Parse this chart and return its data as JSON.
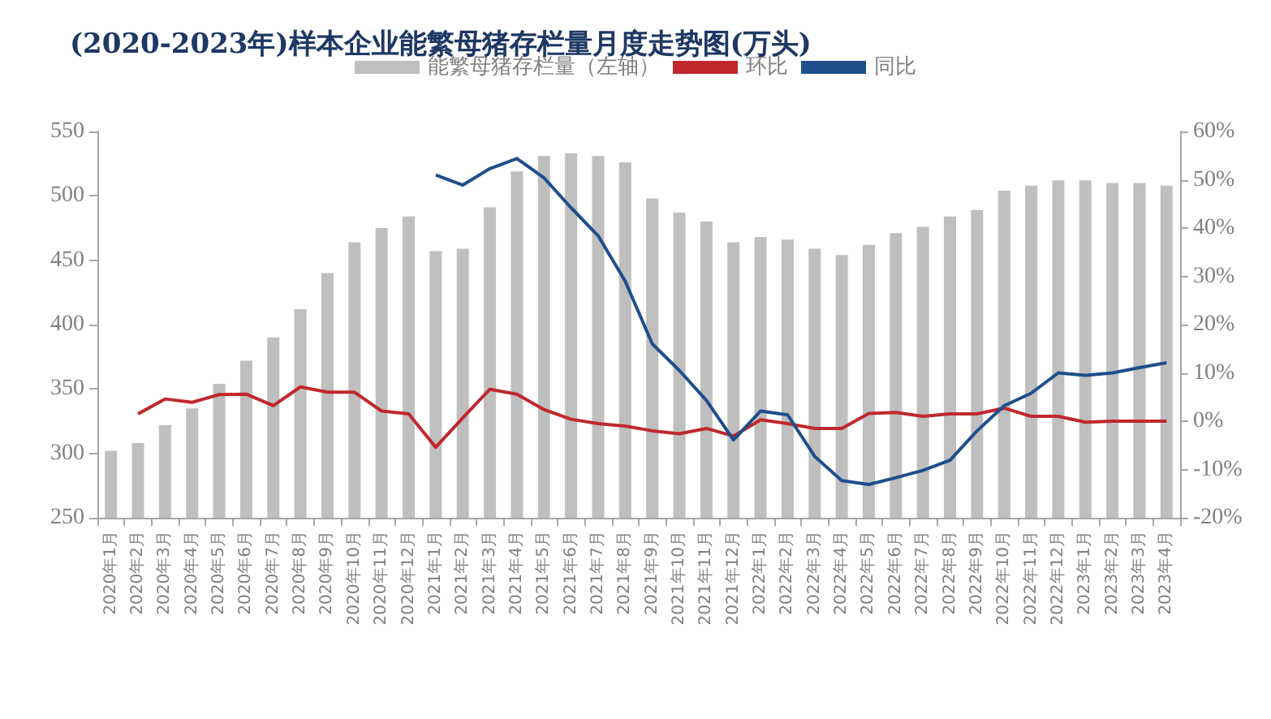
{
  "chart_data": {
    "type": "bar",
    "title": "(2020-2023年)样本企业能繁母猪存栏量月度走势图(万头)",
    "categories": [
      "2020年1月",
      "2020年2月",
      "2020年3月",
      "2020年4月",
      "2020年5月",
      "2020年6月",
      "2020年7月",
      "2020年8月",
      "2020年9月",
      "2020年10月",
      "2020年11月",
      "2020年12月",
      "2021年1月",
      "2021年2月",
      "2021年3月",
      "2021年4月",
      "2021年5月",
      "2021年6月",
      "2021年7月",
      "2021年8月",
      "2021年9月",
      "2021年10月",
      "2021年11月",
      "2021年12月",
      "2022年1月",
      "2022年2月",
      "2022年3月",
      "2022年4月",
      "2022年5月",
      "2022年6月",
      "2022年7月",
      "2022年8月",
      "2022年9月",
      "2022年10月",
      "2022年11月",
      "2022年12月",
      "2023年1月",
      "2023年2月",
      "2023年3月",
      "2023年4月"
    ],
    "series": [
      {
        "name": "能繁母猪存栏量（左轴）",
        "color": "#bfbfbf",
        "values": [
          302,
          308,
          322,
          335,
          354,
          372,
          390,
          412,
          440,
          464,
          475,
          484,
          457,
          459,
          491,
          519,
          531,
          533,
          531,
          526,
          498,
          487,
          480,
          464,
          468,
          466,
          459,
          454,
          462,
          471,
          476,
          484,
          489,
          504,
          508,
          512,
          512,
          510,
          510,
          508
        ]
      },
      {
        "name": "环比",
        "type": "line",
        "axis": "y2",
        "color": "#c0282d",
        "values": [
          null,
          1.5,
          4.6,
          3.9,
          5.5,
          5.6,
          3.2,
          7.1,
          6.0,
          6.0,
          2.1,
          1.5,
          -5.4,
          0.7,
          6.6,
          5.6,
          2.4,
          0.4,
          -0.5,
          -1.0,
          -2.0,
          -2.6,
          -1.5,
          -3.1,
          0.3,
          -0.5,
          -1.5,
          -1.5,
          1.6,
          1.8,
          1.0,
          1.5,
          1.5,
          2.7,
          1.0,
          1.0,
          -0.2,
          0,
          0,
          0
        ]
      },
      {
        "name": "同比",
        "type": "line",
        "axis": "y2",
        "color": "#1f4e8c",
        "values": [
          null,
          null,
          null,
          null,
          null,
          null,
          null,
          null,
          null,
          null,
          null,
          null,
          51.0,
          48.9,
          52.3,
          54.4,
          50.4,
          44.2,
          38.4,
          29,
          16,
          10.5,
          4.3,
          -3.9,
          2.1,
          1.3,
          -7.3,
          -12.3,
          -13.1,
          -11.7,
          -10.2,
          -8.1,
          -2.0,
          3.2,
          5.8,
          10.0,
          9.5,
          10.0,
          11.1,
          12.1
        ]
      }
    ],
    "ylim": [
      250,
      550
    ],
    "yticks": [
      250,
      300,
      350,
      400,
      450,
      500,
      550
    ],
    "y2lim": [
      -20,
      60
    ],
    "y2ticks": [
      {
        "value": -20,
        "label": "-20%"
      },
      {
        "value": -10,
        "label": "-10%"
      },
      {
        "value": 0,
        "label": "0%"
      },
      {
        "value": 10,
        "label": "10%"
      },
      {
        "value": 20,
        "label": "20%"
      },
      {
        "value": 30,
        "label": "30%"
      },
      {
        "value": 40,
        "label": "40%"
      },
      {
        "value": 50,
        "label": "50%"
      },
      {
        "value": 60,
        "label": "60%"
      }
    ],
    "legend": "top",
    "grid": false,
    "marker": "none",
    "line_style": "solid"
  }
}
